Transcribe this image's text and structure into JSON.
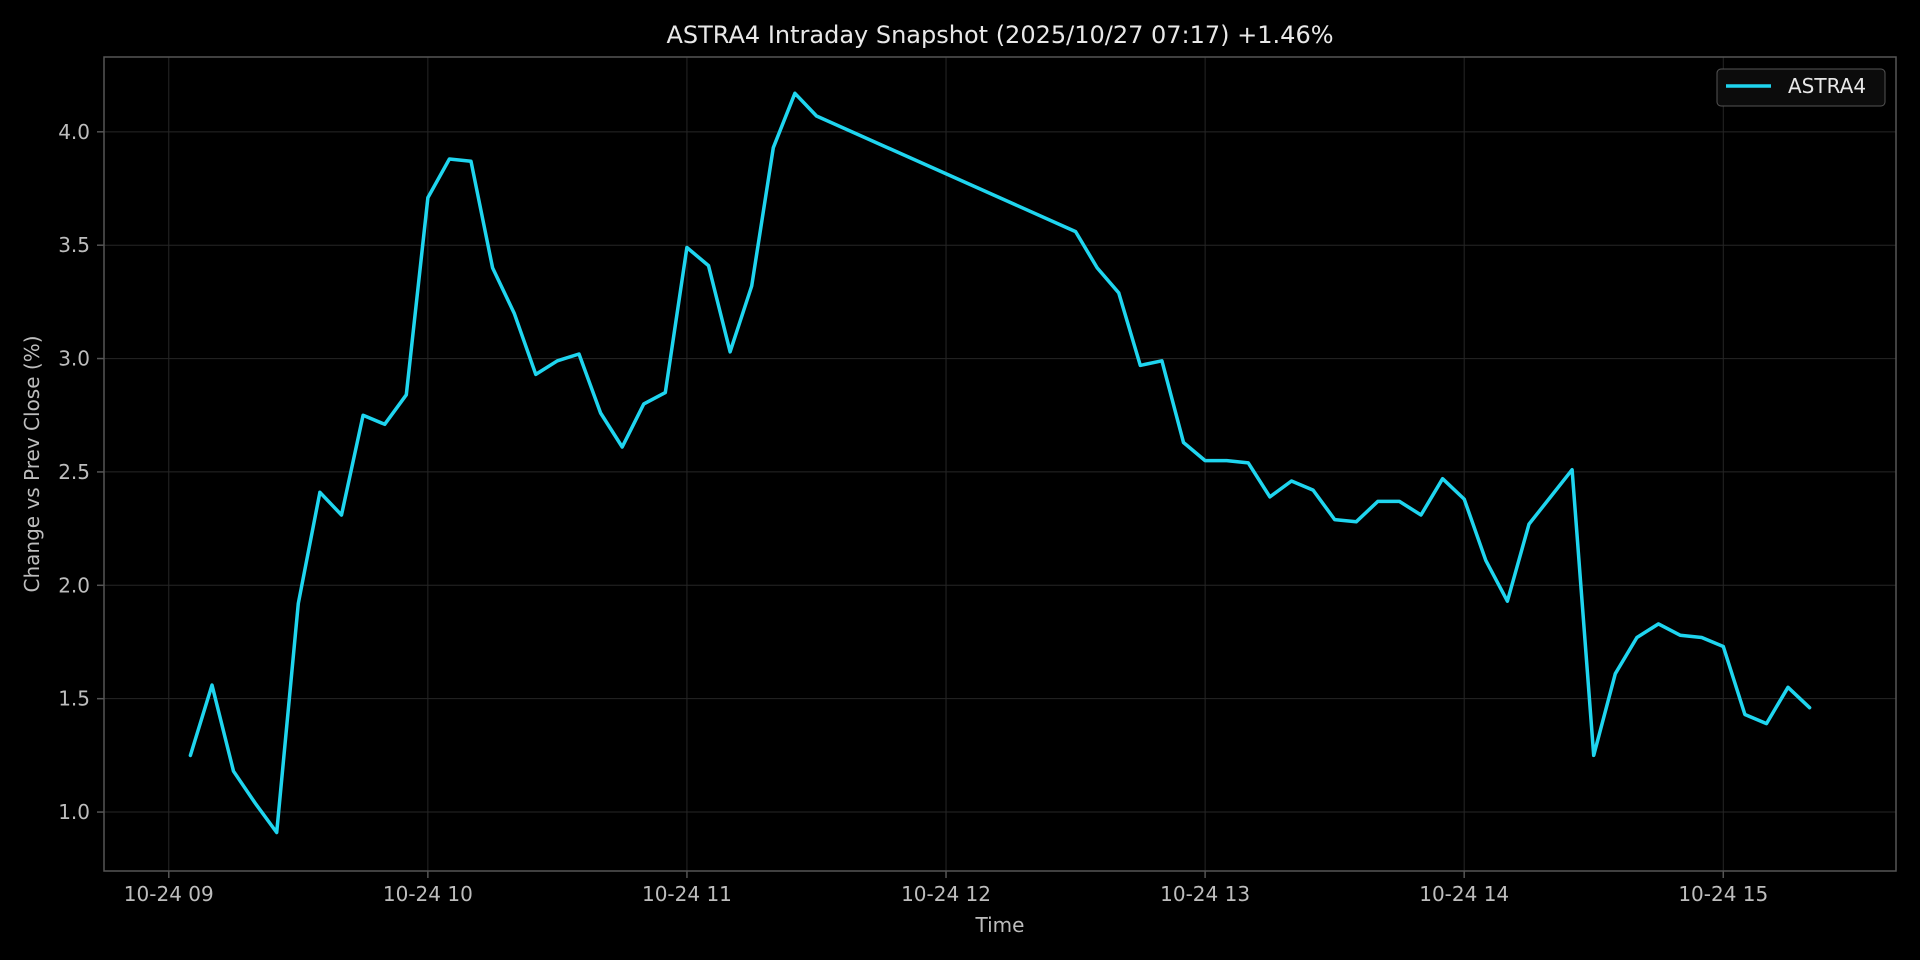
{
  "chart_data": {
    "type": "line",
    "title": "ASTRA4 Intraday Snapshot (2025/10/27 07:17)  +1.46%",
    "xlabel": "Time",
    "ylabel": "Change vs Prev Close (%)",
    "x_ticks": [
      "10-24 09",
      "10-24 10",
      "10-24 11",
      "10-24 12",
      "10-24 13",
      "10-24 14",
      "10-24 15"
    ],
    "y_ticks": [
      "1.0",
      "1.5",
      "2.0",
      "2.5",
      "3.0",
      "3.5",
      "4.0"
    ],
    "xlim": [
      "2025-10-24 08:45",
      "2025-10-24 15:40"
    ],
    "ylim": [
      0.74,
      4.33
    ],
    "grid": true,
    "legend_position": "top-right",
    "colors": {
      "background": "#000000",
      "line": "#1fd5ef",
      "grid": "#262626",
      "spine": "#555555",
      "text": "#bdbdbd"
    },
    "series": [
      {
        "name": "ASTRA4",
        "x": [
          "2025-10-24 09:05",
          "2025-10-24 09:10",
          "2025-10-24 09:15",
          "2025-10-24 09:20",
          "2025-10-24 09:25",
          "2025-10-24 09:30",
          "2025-10-24 09:35",
          "2025-10-24 09:40",
          "2025-10-24 09:45",
          "2025-10-24 09:50",
          "2025-10-24 09:55",
          "2025-10-24 10:00",
          "2025-10-24 10:05",
          "2025-10-24 10:10",
          "2025-10-24 10:15",
          "2025-10-24 10:20",
          "2025-10-24 10:25",
          "2025-10-24 10:30",
          "2025-10-24 10:35",
          "2025-10-24 10:40",
          "2025-10-24 10:45",
          "2025-10-24 10:50",
          "2025-10-24 10:55",
          "2025-10-24 11:00",
          "2025-10-24 11:05",
          "2025-10-24 11:10",
          "2025-10-24 11:15",
          "2025-10-24 11:20",
          "2025-10-24 11:25",
          "2025-10-24 11:30",
          "2025-10-24 12:30",
          "2025-10-24 12:35",
          "2025-10-24 12:40",
          "2025-10-24 12:45",
          "2025-10-24 12:50",
          "2025-10-24 12:55",
          "2025-10-24 13:00",
          "2025-10-24 13:05",
          "2025-10-24 13:10",
          "2025-10-24 13:15",
          "2025-10-24 13:20",
          "2025-10-24 13:25",
          "2025-10-24 13:30",
          "2025-10-24 13:35",
          "2025-10-24 13:40",
          "2025-10-24 13:45",
          "2025-10-24 13:50",
          "2025-10-24 13:55",
          "2025-10-24 14:00",
          "2025-10-24 14:05",
          "2025-10-24 14:10",
          "2025-10-24 14:15",
          "2025-10-24 14:20",
          "2025-10-24 14:25",
          "2025-10-24 14:30",
          "2025-10-24 14:35",
          "2025-10-24 14:40",
          "2025-10-24 14:45",
          "2025-10-24 14:50",
          "2025-10-24 14:55",
          "2025-10-24 15:00",
          "2025-10-24 15:05",
          "2025-10-24 15:10",
          "2025-10-24 15:15",
          "2025-10-24 15:20"
        ],
        "values": [
          1.25,
          1.56,
          1.18,
          1.04,
          0.91,
          1.92,
          2.41,
          2.31,
          2.75,
          2.71,
          2.84,
          3.71,
          3.88,
          3.87,
          3.4,
          3.2,
          2.93,
          2.99,
          3.02,
          2.76,
          2.61,
          2.8,
          2.85,
          3.49,
          3.41,
          3.03,
          3.32,
          3.93,
          4.17,
          4.07,
          3.56,
          3.4,
          3.29,
          2.97,
          2.99,
          2.63,
          2.55,
          2.55,
          2.54,
          2.39,
          2.46,
          2.42,
          2.29,
          2.28,
          2.37,
          2.37,
          2.31,
          2.47,
          2.38,
          2.11,
          1.93,
          2.27,
          2.39,
          2.51,
          1.25,
          1.61,
          1.77,
          1.83,
          1.78,
          1.77,
          1.73,
          1.43,
          1.39,
          1.55,
          1.46
        ]
      }
    ]
  }
}
